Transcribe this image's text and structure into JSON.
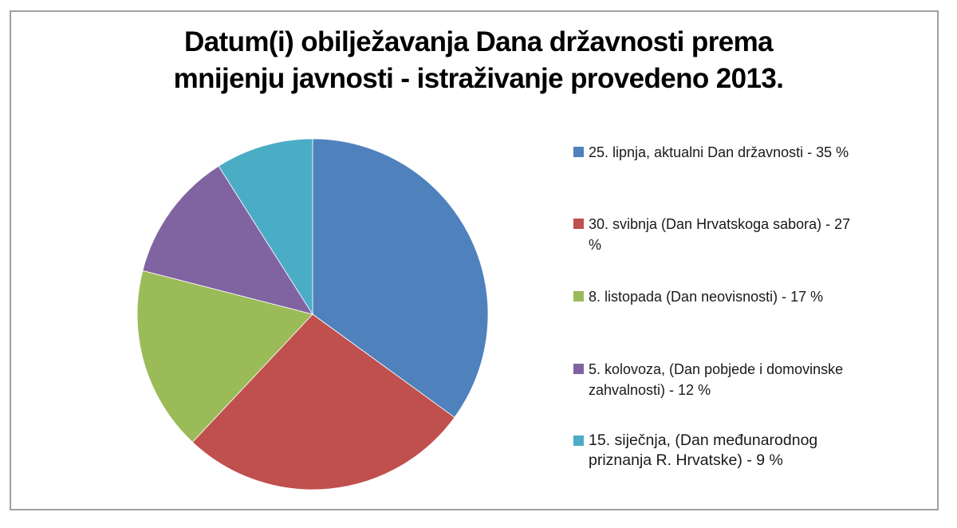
{
  "chart_data": {
    "type": "pie",
    "title": "Datum(i) obilježavanja Dana državnosti prema mnijenju javnosti - istraživanje provedeno 2013.",
    "title_lines": [
      "Datum(i) obilježavanja Dana državnosti prema",
      "mnijenju javnosti - istraživanje provedeno 2013."
    ],
    "legend_position": "right",
    "start_angle_deg": 0,
    "direction": "clockwise",
    "slices": [
      {
        "label": "25. lipnja, aktualni Dan državnosti - 35 %",
        "value": 35,
        "color": "#4f81bd"
      },
      {
        "label": "30. svibnja (Dan Hrvatskoga sabora) - 27 %",
        "value": 27,
        "color": "#c0504d"
      },
      {
        "label": "8. listopada (Dan neovisnosti) - 17 %",
        "value": 17,
        "color": "#9bbb59"
      },
      {
        "label": "5. kolovoza, (Dan pobjede i domovinske zahvalnosti) - 12 %",
        "value": 12,
        "color": "#8064a2"
      },
      {
        "label": "15. siječnja, (Dan međunarodnog priznanja R. Hrvatske) - 9 %",
        "value": 9,
        "color": "#4bacc6"
      }
    ],
    "categories": [
      "25. lipnja, aktualni Dan državnosti",
      "30. svibnja (Dan Hrvatskoga sabora)",
      "8. listopada (Dan neovisnosti)",
      "5. kolovoza, (Dan pobjede i domovinske zahvalnosti)",
      "15. siječnja, (Dan međunarodnog priznanja R. Hrvatske)"
    ],
    "values": [
      35,
      27,
      17,
      12,
      9
    ],
    "unit": "%"
  },
  "legend": {
    "items": [
      {
        "line1": "25. lipnja, aktualni Dan državnosti - 35 %",
        "line2": ""
      },
      {
        "line1": "30. svibnja (Dan Hrvatskoga sabora) - 27",
        "line2": "%"
      },
      {
        "line1": "8. listopada (Dan neovisnosti) - 17 %",
        "line2": ""
      },
      {
        "line1": "5. kolovoza, (Dan pobjede i domovinske",
        "line2": "zahvalnosti) - 12 %"
      },
      {
        "line1": "15. siječnja, (Dan međunarodnog",
        "line2": "priznanja R. Hrvatske) - 9 %"
      }
    ]
  }
}
